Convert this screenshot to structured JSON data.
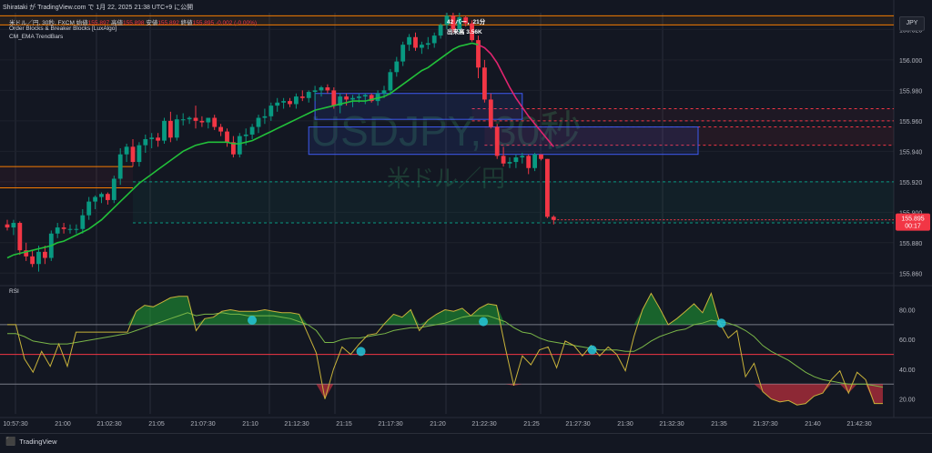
{
  "header": {
    "published": "Shirataki が TradingView.com で 1月 22, 2025 21:38 UTC+9 に公開",
    "symbol_line": "米ドル／円, 30秒, FXCM",
    "ohlc": [
      {
        "label": "始値",
        "value": "155.897"
      },
      {
        "label": "高値",
        "value": "155.898"
      },
      {
        "label": "安値",
        "value": "155.892"
      },
      {
        "label": "終値",
        "value": "155.895"
      }
    ],
    "change": "-0.002 (-0.00%)",
    "indicator1": "Order Blocks & Breaker Blocks [LuxAlgo]",
    "indicator2": "CM_EMA TrendBars",
    "bar_count": "42 バー，21分",
    "volume": "出来高 3.56K",
    "currency": "JPY",
    "rsi_label": "RSI",
    "watermark_symbol": "USDJPY, 30秒",
    "watermark_name": "米ドル／円",
    "footer": "TradingView"
  },
  "colors": {
    "background": "#131722",
    "up": "#089981",
    "down": "#f23645",
    "ema_up": "#22c03a",
    "ema_down": "#e0246f",
    "rsi_line": "#c8b23a",
    "rsi_ma": "#7ab648",
    "block_blue": "#3d5af1",
    "block_orange": "#f57c00",
    "price_tag": "#f23645"
  },
  "chart_data": {
    "type": "candlestick",
    "price_axis": {
      "ticks": [
        "156.020",
        "156.000",
        "155.980",
        "155.960",
        "155.940",
        "155.920",
        "155.900",
        "155.880",
        "155.860"
      ],
      "range": [
        155.853,
        156.031
      ]
    },
    "last_price": {
      "value": "155.895",
      "timer": "00:17"
    },
    "time_axis": [
      "10:57:30",
      "21:00",
      "21:02:30",
      "21:05",
      "21:07:30",
      "21:10",
      "21:12:30",
      "21:15",
      "21:17:30",
      "21:20",
      "21:22:30",
      "21:25",
      "21:27:30",
      "21:30",
      "21:32:30",
      "21:35",
      "21:37:30",
      "21:40",
      "21:42:30"
    ],
    "candles": [
      [
        155.892,
        155.895,
        155.888,
        155.89
      ],
      [
        155.89,
        155.895,
        155.885,
        155.893
      ],
      [
        155.893,
        155.894,
        155.872,
        155.875
      ],
      [
        155.875,
        155.88,
        155.868,
        155.871
      ],
      [
        155.871,
        155.875,
        155.864,
        155.866
      ],
      [
        155.866,
        155.878,
        155.861,
        155.874
      ],
      [
        155.874,
        155.878,
        155.866,
        155.87
      ],
      [
        155.87,
        155.888,
        155.868,
        155.886
      ],
      [
        155.886,
        155.893,
        155.883,
        155.89
      ],
      [
        155.89,
        155.893,
        155.886,
        155.889
      ],
      [
        155.889,
        155.892,
        155.886,
        155.889
      ],
      [
        155.889,
        155.892,
        155.886,
        155.889
      ],
      [
        155.889,
        155.902,
        155.886,
        155.898
      ],
      [
        155.898,
        155.91,
        155.895,
        155.907
      ],
      [
        155.907,
        155.911,
        155.902,
        155.91
      ],
      [
        155.91,
        155.913,
        155.906,
        155.912
      ],
      [
        155.912,
        155.913,
        155.905,
        155.908
      ],
      [
        155.908,
        155.924,
        155.906,
        155.922
      ],
      [
        155.922,
        155.942,
        155.918,
        155.938
      ],
      [
        155.938,
        155.945,
        155.933,
        155.943
      ],
      [
        155.943,
        155.948,
        155.93,
        155.933
      ],
      [
        155.933,
        155.946,
        155.93,
        155.944
      ],
      [
        155.944,
        155.951,
        155.939,
        155.948
      ],
      [
        155.948,
        155.952,
        155.942,
        155.949
      ],
      [
        155.949,
        155.952,
        155.943,
        155.947
      ],
      [
        155.947,
        155.962,
        155.945,
        155.96
      ],
      [
        155.96,
        155.966,
        155.946,
        155.949
      ],
      [
        155.949,
        155.964,
        155.947,
        155.961
      ],
      [
        155.961,
        155.965,
        155.957,
        155.961
      ],
      [
        155.961,
        155.963,
        155.958,
        155.962
      ],
      [
        155.962,
        155.97,
        155.955,
        155.96
      ],
      [
        155.96,
        155.963,
        155.956,
        155.959
      ],
      [
        155.959,
        155.962,
        155.955,
        155.962
      ],
      [
        155.962,
        155.964,
        155.954,
        155.956
      ],
      [
        155.956,
        155.958,
        155.95,
        155.953
      ],
      [
        155.953,
        155.955,
        155.943,
        155.946
      ],
      [
        155.946,
        155.95,
        155.936,
        155.938
      ],
      [
        155.938,
        155.952,
        155.936,
        155.95
      ],
      [
        155.95,
        155.955,
        155.944,
        155.951
      ],
      [
        155.951,
        155.958,
        155.948,
        155.956
      ],
      [
        155.956,
        155.964,
        155.952,
        155.962
      ],
      [
        155.962,
        155.968,
        155.958,
        155.963
      ],
      [
        155.963,
        155.972,
        155.96,
        155.97
      ],
      [
        155.97,
        155.975,
        155.966,
        155.972
      ],
      [
        155.972,
        155.975,
        155.968,
        155.973
      ],
      [
        155.973,
        155.975,
        155.969,
        155.971
      ],
      [
        155.971,
        155.978,
        155.968,
        155.976
      ],
      [
        155.976,
        155.98,
        155.973,
        155.975
      ],
      [
        155.975,
        155.98,
        155.972,
        155.979
      ],
      [
        155.979,
        155.983,
        155.973,
        155.98
      ],
      [
        155.98,
        155.983,
        155.976,
        155.982
      ],
      [
        155.982,
        155.984,
        155.978,
        155.98
      ],
      [
        155.98,
        155.982,
        155.968,
        155.97
      ],
      [
        155.97,
        155.978,
        155.965,
        155.976
      ],
      [
        155.976,
        155.978,
        155.97,
        155.974
      ],
      [
        155.974,
        155.977,
        155.969,
        155.975
      ],
      [
        155.975,
        155.978,
        155.972,
        155.976
      ],
      [
        155.976,
        155.978,
        155.971,
        155.977
      ],
      [
        155.977,
        155.978,
        155.972,
        155.973
      ],
      [
        155.973,
        155.98,
        155.97,
        155.978
      ],
      [
        155.978,
        155.983,
        155.975,
        155.98
      ],
      [
        155.98,
        155.994,
        155.977,
        155.992
      ],
      [
        155.992,
        156.002,
        155.989,
        155.999
      ],
      [
        155.999,
        156.012,
        155.996,
        156.01
      ],
      [
        156.01,
        156.017,
        156.006,
        156.015
      ],
      [
        156.015,
        156.018,
        156.006,
        156.008
      ],
      [
        156.008,
        156.012,
        156.004,
        156.01
      ],
      [
        156.01,
        156.015,
        156.007,
        156.011
      ],
      [
        156.011,
        156.018,
        156.008,
        156.016
      ],
      [
        156.016,
        156.024,
        156.014,
        156.023
      ],
      [
        156.023,
        156.031,
        156.02,
        156.029
      ],
      [
        156.029,
        156.031,
        156.018,
        156.02
      ],
      [
        156.02,
        156.031,
        156.018,
        156.028
      ],
      [
        156.028,
        156.029,
        156.022,
        156.024
      ],
      [
        156.024,
        156.026,
        156.012,
        156.013
      ],
      [
        156.013,
        156.016,
        155.988,
        155.995
      ],
      [
        155.995,
        156.0,
        155.972,
        155.974
      ],
      [
        155.974,
        155.978,
        155.955,
        155.956
      ],
      [
        155.956,
        155.958,
        155.935,
        155.937
      ],
      [
        155.937,
        155.943,
        155.93,
        155.932
      ],
      [
        155.932,
        155.936,
        155.929,
        155.933
      ],
      [
        155.933,
        155.938,
        155.929,
        155.936
      ],
      [
        155.936,
        155.939,
        155.932,
        155.937
      ],
      [
        155.937,
        155.938,
        155.925,
        155.929
      ],
      [
        155.929,
        155.939,
        155.927,
        155.938
      ],
      [
        155.938,
        155.938,
        155.934,
        155.935
      ],
      [
        155.935,
        155.935,
        155.896,
        155.897
      ],
      [
        155.897,
        155.898,
        155.892,
        155.895
      ]
    ],
    "ema": [
      155.87,
      155.872,
      155.873,
      155.874,
      155.875,
      155.876,
      155.877,
      155.878,
      155.88,
      155.881,
      155.883,
      155.885,
      155.887,
      155.889,
      155.892,
      155.895,
      155.899,
      155.903,
      155.907,
      155.911,
      155.915,
      155.919,
      155.922,
      155.925,
      155.928,
      155.931,
      155.934,
      155.937,
      155.94,
      155.942,
      155.944,
      155.945,
      155.946,
      155.946,
      155.946,
      155.946,
      155.945,
      155.945,
      155.946,
      155.947,
      155.949,
      155.951,
      155.953,
      155.955,
      155.957,
      155.959,
      155.961,
      155.963,
      155.965,
      155.967,
      155.968,
      155.969,
      155.97,
      155.971,
      155.972,
      155.973,
      155.973,
      155.973,
      155.974,
      155.975,
      155.976,
      155.978,
      155.981,
      155.984,
      155.987,
      155.99,
      155.993,
      155.995,
      155.998,
      156.001,
      156.004,
      156.007,
      156.009,
      156.01,
      156.011,
      156.01,
      156.008,
      156.004,
      155.998,
      155.99,
      155.982,
      155.975,
      155.969,
      155.963,
      155.958,
      155.953,
      155.948,
      155.943
    ],
    "blocks": [
      {
        "kind": "bearish",
        "top": 156.029,
        "bottom": 156.023
      },
      {
        "kind": "bullish-breaker",
        "top": 155.968,
        "bottom": 155.96
      },
      {
        "kind": "bullish-breaker",
        "top": 155.956,
        "bottom": 155.944
      },
      {
        "kind": "bearish-breaker",
        "top": 155.93,
        "bottom": 155.916
      },
      {
        "kind": "bullish",
        "top": 155.92,
        "bottom": 155.893
      }
    ],
    "rsi": {
      "ticks": [
        "80.00",
        "60.00",
        "40.00",
        "20.00"
      ],
      "levels": [
        70,
        50,
        30
      ],
      "values": [
        70,
        70,
        47,
        38,
        52,
        42,
        57,
        42,
        65,
        65,
        65,
        65,
        65,
        65,
        65,
        79,
        83,
        82,
        85,
        88,
        89,
        89,
        66,
        74,
        75,
        79,
        80,
        79,
        79,
        79,
        80,
        79,
        78,
        78,
        77,
        64,
        51,
        20,
        40,
        55,
        50,
        57,
        63,
        64,
        71,
        77,
        75,
        80,
        66,
        73,
        77,
        80,
        79,
        81,
        76,
        81,
        84,
        83,
        55,
        29,
        49,
        43,
        53,
        55,
        41,
        59,
        56,
        49,
        56,
        49,
        55,
        50,
        39,
        62,
        80,
        91,
        81,
        70,
        74,
        79,
        84,
        78,
        91,
        71,
        61,
        66,
        35,
        44,
        25,
        20,
        18,
        19,
        16,
        17,
        22,
        24,
        33,
        39,
        24,
        38,
        33,
        17,
        17
      ],
      "ma": [
        64,
        64,
        62,
        59,
        58,
        57,
        57,
        57,
        58,
        59,
        60,
        61,
        62,
        63,
        64,
        66,
        68,
        70,
        72,
        74,
        76,
        78,
        76,
        77,
        77,
        78,
        77,
        77,
        76,
        76,
        76,
        76,
        75,
        74,
        72,
        70,
        66,
        58,
        58,
        60,
        61,
        61,
        62,
        63,
        64,
        66,
        67,
        68,
        68,
        69,
        70,
        71,
        73,
        75,
        76,
        76,
        76,
        74,
        72,
        68,
        65,
        64,
        61,
        59,
        58,
        57,
        56,
        55,
        54,
        53,
        53,
        53,
        52,
        52,
        55,
        59,
        62,
        64,
        66,
        67,
        70,
        71,
        73,
        72,
        71,
        69,
        66,
        62,
        56,
        52,
        49,
        46,
        42,
        38,
        35,
        33,
        32,
        31,
        30,
        30,
        30,
        29,
        28
      ]
    }
  }
}
